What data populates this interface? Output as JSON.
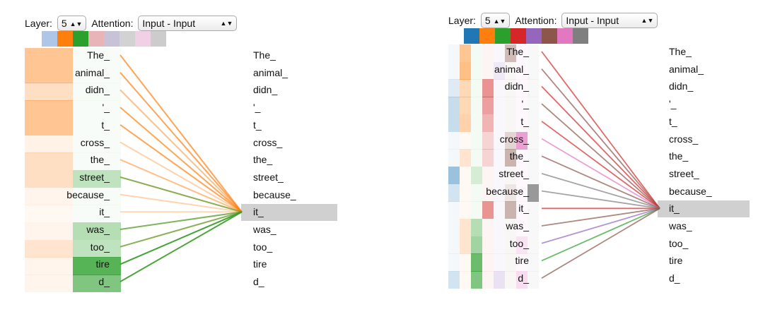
{
  "controls": {
    "layer_label": "Layer:",
    "layer_value": "5",
    "attention_label": "Attention:",
    "attention_value": "Input - Input"
  },
  "tokens": [
    "The_",
    "animal_",
    "didn_",
    "'_",
    "t_",
    "cross_",
    "the_",
    "street_",
    "because_",
    "it_",
    "was_",
    "too_",
    "tire",
    "d_"
  ],
  "selected_token_index": 9,
  "left_panel": {
    "swatches": [
      "#aec7e8",
      "#ff7f0e",
      "#2ca02c",
      "#e8b4b8",
      "#c8c2d6",
      "#d2d2d2",
      "#f1d0e6",
      "#cccccc"
    ],
    "head_colors": [
      "#ff7f0e",
      "#2ca02c"
    ],
    "attention": [
      [
        0.45,
        0.0
      ],
      [
        0.45,
        0.0
      ],
      [
        0.25,
        0.0
      ],
      [
        0.45,
        0.0
      ],
      [
        0.45,
        0.0
      ],
      [
        0.1,
        0.0
      ],
      [
        0.25,
        0.0
      ],
      [
        0.25,
        0.3
      ],
      [
        0.08,
        0.0
      ],
      [
        0.05,
        0.0
      ],
      [
        0.08,
        0.35
      ],
      [
        0.2,
        0.3
      ],
      [
        0.08,
        0.8
      ],
      [
        0.08,
        0.6
      ]
    ]
  },
  "right_panel": {
    "swatches": [
      "#1f77b4",
      "#ff7f0e",
      "#2ca02c",
      "#d62728",
      "#9467bd",
      "#8c564b",
      "#e377c2",
      "#7f7f7f"
    ],
    "head_colors": [
      "#1f77b4",
      "#ff7f0e",
      "#2ca02c",
      "#d62728",
      "#9467bd",
      "#8c564b",
      "#e377c2",
      "#7f7f7f"
    ]
  }
}
